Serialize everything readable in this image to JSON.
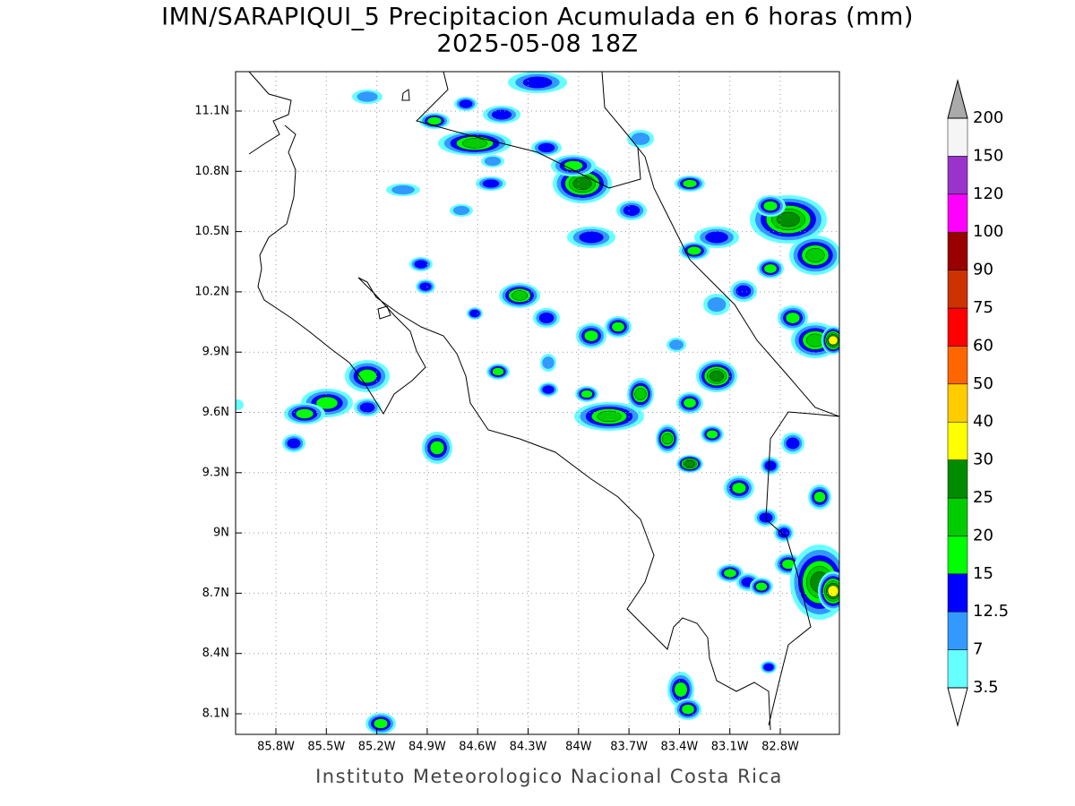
{
  "map": {
    "title": "IMN/SARAPIQUI_5 Precipitacion Acumulada en 6 horas (mm)",
    "subtitle": "2025-05-08 18Z",
    "lat_ticks": [
      {
        "value": 11.1,
        "label": "11.1N"
      },
      {
        "value": 10.8,
        "label": "10.8N"
      },
      {
        "value": 10.5,
        "label": "10.5N"
      },
      {
        "value": 10.2,
        "label": "10.2N"
      },
      {
        "value": 9.9,
        "label": "9.9N"
      },
      {
        "value": 9.6,
        "label": "9.6N"
      },
      {
        "value": 9.3,
        "label": "9.3N"
      },
      {
        "value": 9,
        "label": "9N"
      },
      {
        "value": 8.7,
        "label": "8.7N"
      },
      {
        "value": 8.4,
        "label": "8.4N"
      },
      {
        "value": 8.1,
        "label": "8.1N"
      }
    ],
    "lon_ticks": [
      {
        "value": -85.8,
        "label": "85.8W"
      },
      {
        "value": -85.5,
        "label": "85.5W"
      },
      {
        "value": -85.2,
        "label": "85.2W"
      },
      {
        "value": -84.9,
        "label": "84.9W"
      },
      {
        "value": -84.6,
        "label": "84.6W"
      },
      {
        "value": -84.3,
        "label": "84.3W"
      },
      {
        "value": -84,
        "label": "84W"
      },
      {
        "value": -83.7,
        "label": "83.7W"
      },
      {
        "value": -83.4,
        "label": "83.4W"
      },
      {
        "value": -83.1,
        "label": "83.1W"
      },
      {
        "value": -82.8,
        "label": "82.8W"
      }
    ],
    "colorbar": {
      "levels": [
        3.5,
        7,
        12.5,
        15,
        20,
        25,
        30,
        40,
        50,
        60,
        75,
        90,
        100,
        120,
        150,
        200
      ],
      "colors": [
        "#66ffff",
        "#3399ff",
        "#0000ff",
        "#00ff00",
        "#00cc00",
        "#008c00",
        "#ffff00",
        "#ffcc00",
        "#ff6600",
        "#ff0000",
        "#cc3300",
        "#990000",
        "#ff00ff",
        "#9933cc",
        "#f5f5f5"
      ],
      "over_color": "#aaaaaa",
      "under_color": "#ffffff"
    },
    "footer": "Instituto Meteorologico Nacional Costa Rica"
  }
}
